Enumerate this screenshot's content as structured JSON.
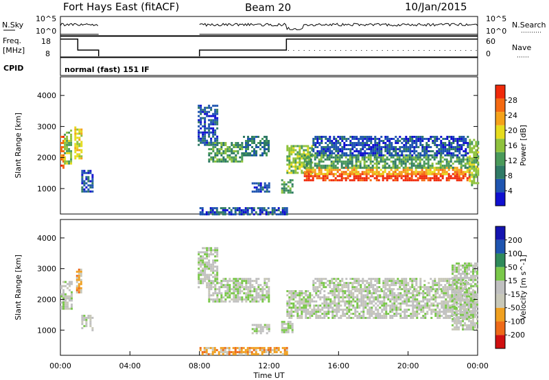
{
  "header": {
    "radar": "Fort Hays East (fitACF)",
    "beam": "Beam 20",
    "date": "10/Jan/2015"
  },
  "panels": {
    "nsky": {
      "label": "N.Sky",
      "right_label": "N.Search",
      "left_ticks": [
        "10^5",
        "10^0"
      ],
      "right_ticks": [
        "10^5",
        "10^0"
      ]
    },
    "freq": {
      "label_line1": "Freq.",
      "label_line2": "[MHz]",
      "right_label": "Nave",
      "left_ticks": [
        "18",
        "8"
      ],
      "right_ticks": [
        "60",
        "0"
      ]
    },
    "cpid": {
      "label": "CPID",
      "text": "normal (fast) 151 IF"
    }
  },
  "colors": {
    "power": [
      "#1010d0",
      "#1f55b0",
      "#2f7a66",
      "#4a9a5a",
      "#8fc23d",
      "#e6dc1e",
      "#f5a21a",
      "#f56a12",
      "#f02a0a"
    ],
    "velocity": [
      "#d01010",
      "#ee6a18",
      "#f0a020",
      "#c8c8b8",
      "#c0c0c0",
      "#7ac84a",
      "#2f8a5a",
      "#1f55b0",
      "#1414b0"
    ],
    "ground": "#c0c0c0"
  },
  "chart_data": [
    {
      "type": "heatmap",
      "name": "power",
      "ylabel": "Slant Range [km]",
      "colorbar_label": "Power [dB]",
      "colorbar_ticks": [
        "4",
        "8",
        "12",
        "16",
        "20",
        "24",
        "28"
      ],
      "xlim_hours": [
        0,
        24
      ],
      "ylim_km": [
        180,
        4600
      ],
      "yticks": [
        1000,
        2000,
        3000,
        4000
      ],
      "regions": [
        {
          "t0": 0.0,
          "t1": 0.2,
          "r0": 1700,
          "r1": 2700,
          "level": 7
        },
        {
          "t0": 0.2,
          "t1": 0.6,
          "r0": 1800,
          "r1": 2900,
          "level": 4
        },
        {
          "t0": 0.8,
          "t1": 1.2,
          "r0": 2000,
          "r1": 3000,
          "level": 5
        },
        {
          "t0": 1.2,
          "t1": 1.8,
          "r0": 900,
          "r1": 1600,
          "level": 1
        },
        {
          "t0": 7.9,
          "t1": 9.0,
          "r0": 2400,
          "r1": 3700,
          "level": 1
        },
        {
          "t0": 8.5,
          "t1": 10.5,
          "r0": 1900,
          "r1": 2500,
          "level": 3
        },
        {
          "t0": 10.5,
          "t1": 12.0,
          "r0": 2100,
          "r1": 2700,
          "level": 2
        },
        {
          "t0": 11.0,
          "t1": 12.0,
          "r0": 900,
          "r1": 1200,
          "level": 1
        },
        {
          "t0": 12.7,
          "t1": 13.3,
          "r0": 900,
          "r1": 1300,
          "level": 3
        },
        {
          "t0": 13.0,
          "t1": 14.5,
          "r0": 1500,
          "r1": 2400,
          "level": 4
        },
        {
          "t0": 14.0,
          "t1": 23.5,
          "r0": 1300,
          "r1": 1500,
          "level": 8
        },
        {
          "t0": 14.0,
          "t1": 23.5,
          "r0": 1500,
          "r1": 1700,
          "level": 6
        },
        {
          "t0": 14.0,
          "t1": 23.5,
          "r0": 1700,
          "r1": 2100,
          "level": 3
        },
        {
          "t0": 14.5,
          "t1": 23.5,
          "r0": 2100,
          "r1": 2700,
          "level": 1
        },
        {
          "t0": 23.5,
          "t1": 24.0,
          "r0": 1100,
          "r1": 2600,
          "level": 4
        },
        {
          "t0": 8.0,
          "t1": 13.0,
          "r0": 200,
          "r1": 400,
          "level": 1
        }
      ]
    },
    {
      "type": "heatmap",
      "name": "velocity",
      "ylabel": "Slant Range [km]",
      "colorbar_label": "Velocity [m s^-1]",
      "colorbar_ticks": [
        "-200",
        "-100",
        "-50",
        "-15",
        "15",
        "50",
        "100",
        "200"
      ],
      "xlim_hours": [
        0,
        24
      ],
      "ylim_km": [
        180,
        4600
      ],
      "yticks": [
        1000,
        2000,
        3000,
        4000
      ],
      "xticks": [
        "00:00",
        "04:00",
        "08:00",
        "12:00",
        "16:00",
        "20:00",
        "00:00"
      ],
      "xlabel": "Time UT",
      "regions": [
        {
          "t0": 0.0,
          "t1": 0.6,
          "r0": 1700,
          "r1": 2600,
          "level": 4
        },
        {
          "t0": 0.9,
          "t1": 1.2,
          "r0": 2200,
          "r1": 3000,
          "level": 2
        },
        {
          "t0": 1.2,
          "t1": 1.8,
          "r0": 1000,
          "r1": 1500,
          "level": 4
        },
        {
          "t0": 7.9,
          "t1": 9.0,
          "r0": 2400,
          "r1": 3700,
          "level": 4
        },
        {
          "t0": 8.5,
          "t1": 12.0,
          "r0": 1900,
          "r1": 2700,
          "level": 4
        },
        {
          "t0": 11.0,
          "t1": 12.0,
          "r0": 900,
          "r1": 1200,
          "level": 4
        },
        {
          "t0": 12.7,
          "t1": 13.3,
          "r0": 900,
          "r1": 1300,
          "level": 4
        },
        {
          "t0": 13.0,
          "t1": 23.8,
          "r0": 1400,
          "r1": 2300,
          "level": 4
        },
        {
          "t0": 14.5,
          "t1": 23.5,
          "r0": 2300,
          "r1": 2700,
          "level": 4
        },
        {
          "t0": 22.5,
          "t1": 24.0,
          "r0": 1000,
          "r1": 3200,
          "level": 4
        },
        {
          "t0": 8.0,
          "t1": 13.0,
          "r0": 200,
          "r1": 450,
          "level": 2
        }
      ]
    }
  ]
}
